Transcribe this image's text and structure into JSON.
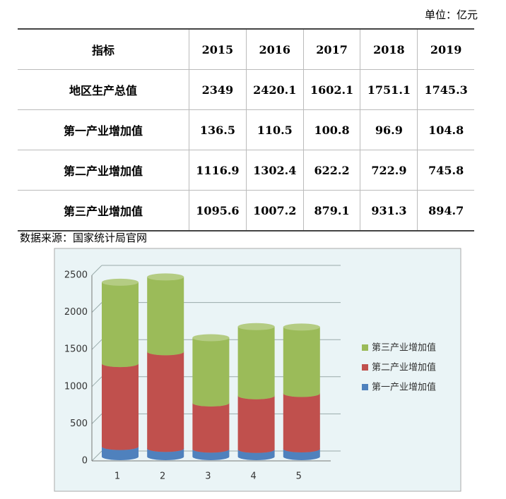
{
  "unit": "单位：亿元",
  "table": {
    "header": [
      "指标",
      "2015",
      "2016",
      "2017",
      "2018",
      "2019"
    ],
    "rows": [
      [
        "地区生产总值",
        2349,
        2420.1,
        1602.1,
        1751.1,
        1745.3
      ],
      [
        "第一产业增加值",
        136.5,
        110.5,
        100.8,
        96.9,
        104.8
      ],
      [
        "第二产业增加值",
        1116.9,
        1302.4,
        622.2,
        722.9,
        745.8
      ],
      [
        "第三产业增加值",
        1095.6,
        1007.2,
        879.1,
        931.3,
        894.7
      ]
    ]
  },
  "source": "数据来源：国家统计局官网",
  "chart_data": {
    "type": "stacked-bar",
    "categories": [
      "1",
      "2",
      "3",
      "4",
      "5"
    ],
    "series": [
      {
        "name": "第一产业增加值",
        "color": "#4f81bd",
        "values": [
          136.5,
          110.5,
          100.8,
          96.9,
          104.8
        ]
      },
      {
        "name": "第二产业增加值",
        "color": "#c0504d",
        "values": [
          1116.9,
          1302.4,
          622.2,
          722.9,
          745.8
        ]
      },
      {
        "name": "第三产业增加值",
        "color": "#9bbb59",
        "values": [
          1095.6,
          1007.2,
          879.1,
          931.3,
          894.7
        ]
      }
    ],
    "ylim": [
      0,
      2500
    ],
    "yticks": [
      0,
      500,
      1000,
      1500,
      2000,
      2500
    ],
    "grid": true
  }
}
